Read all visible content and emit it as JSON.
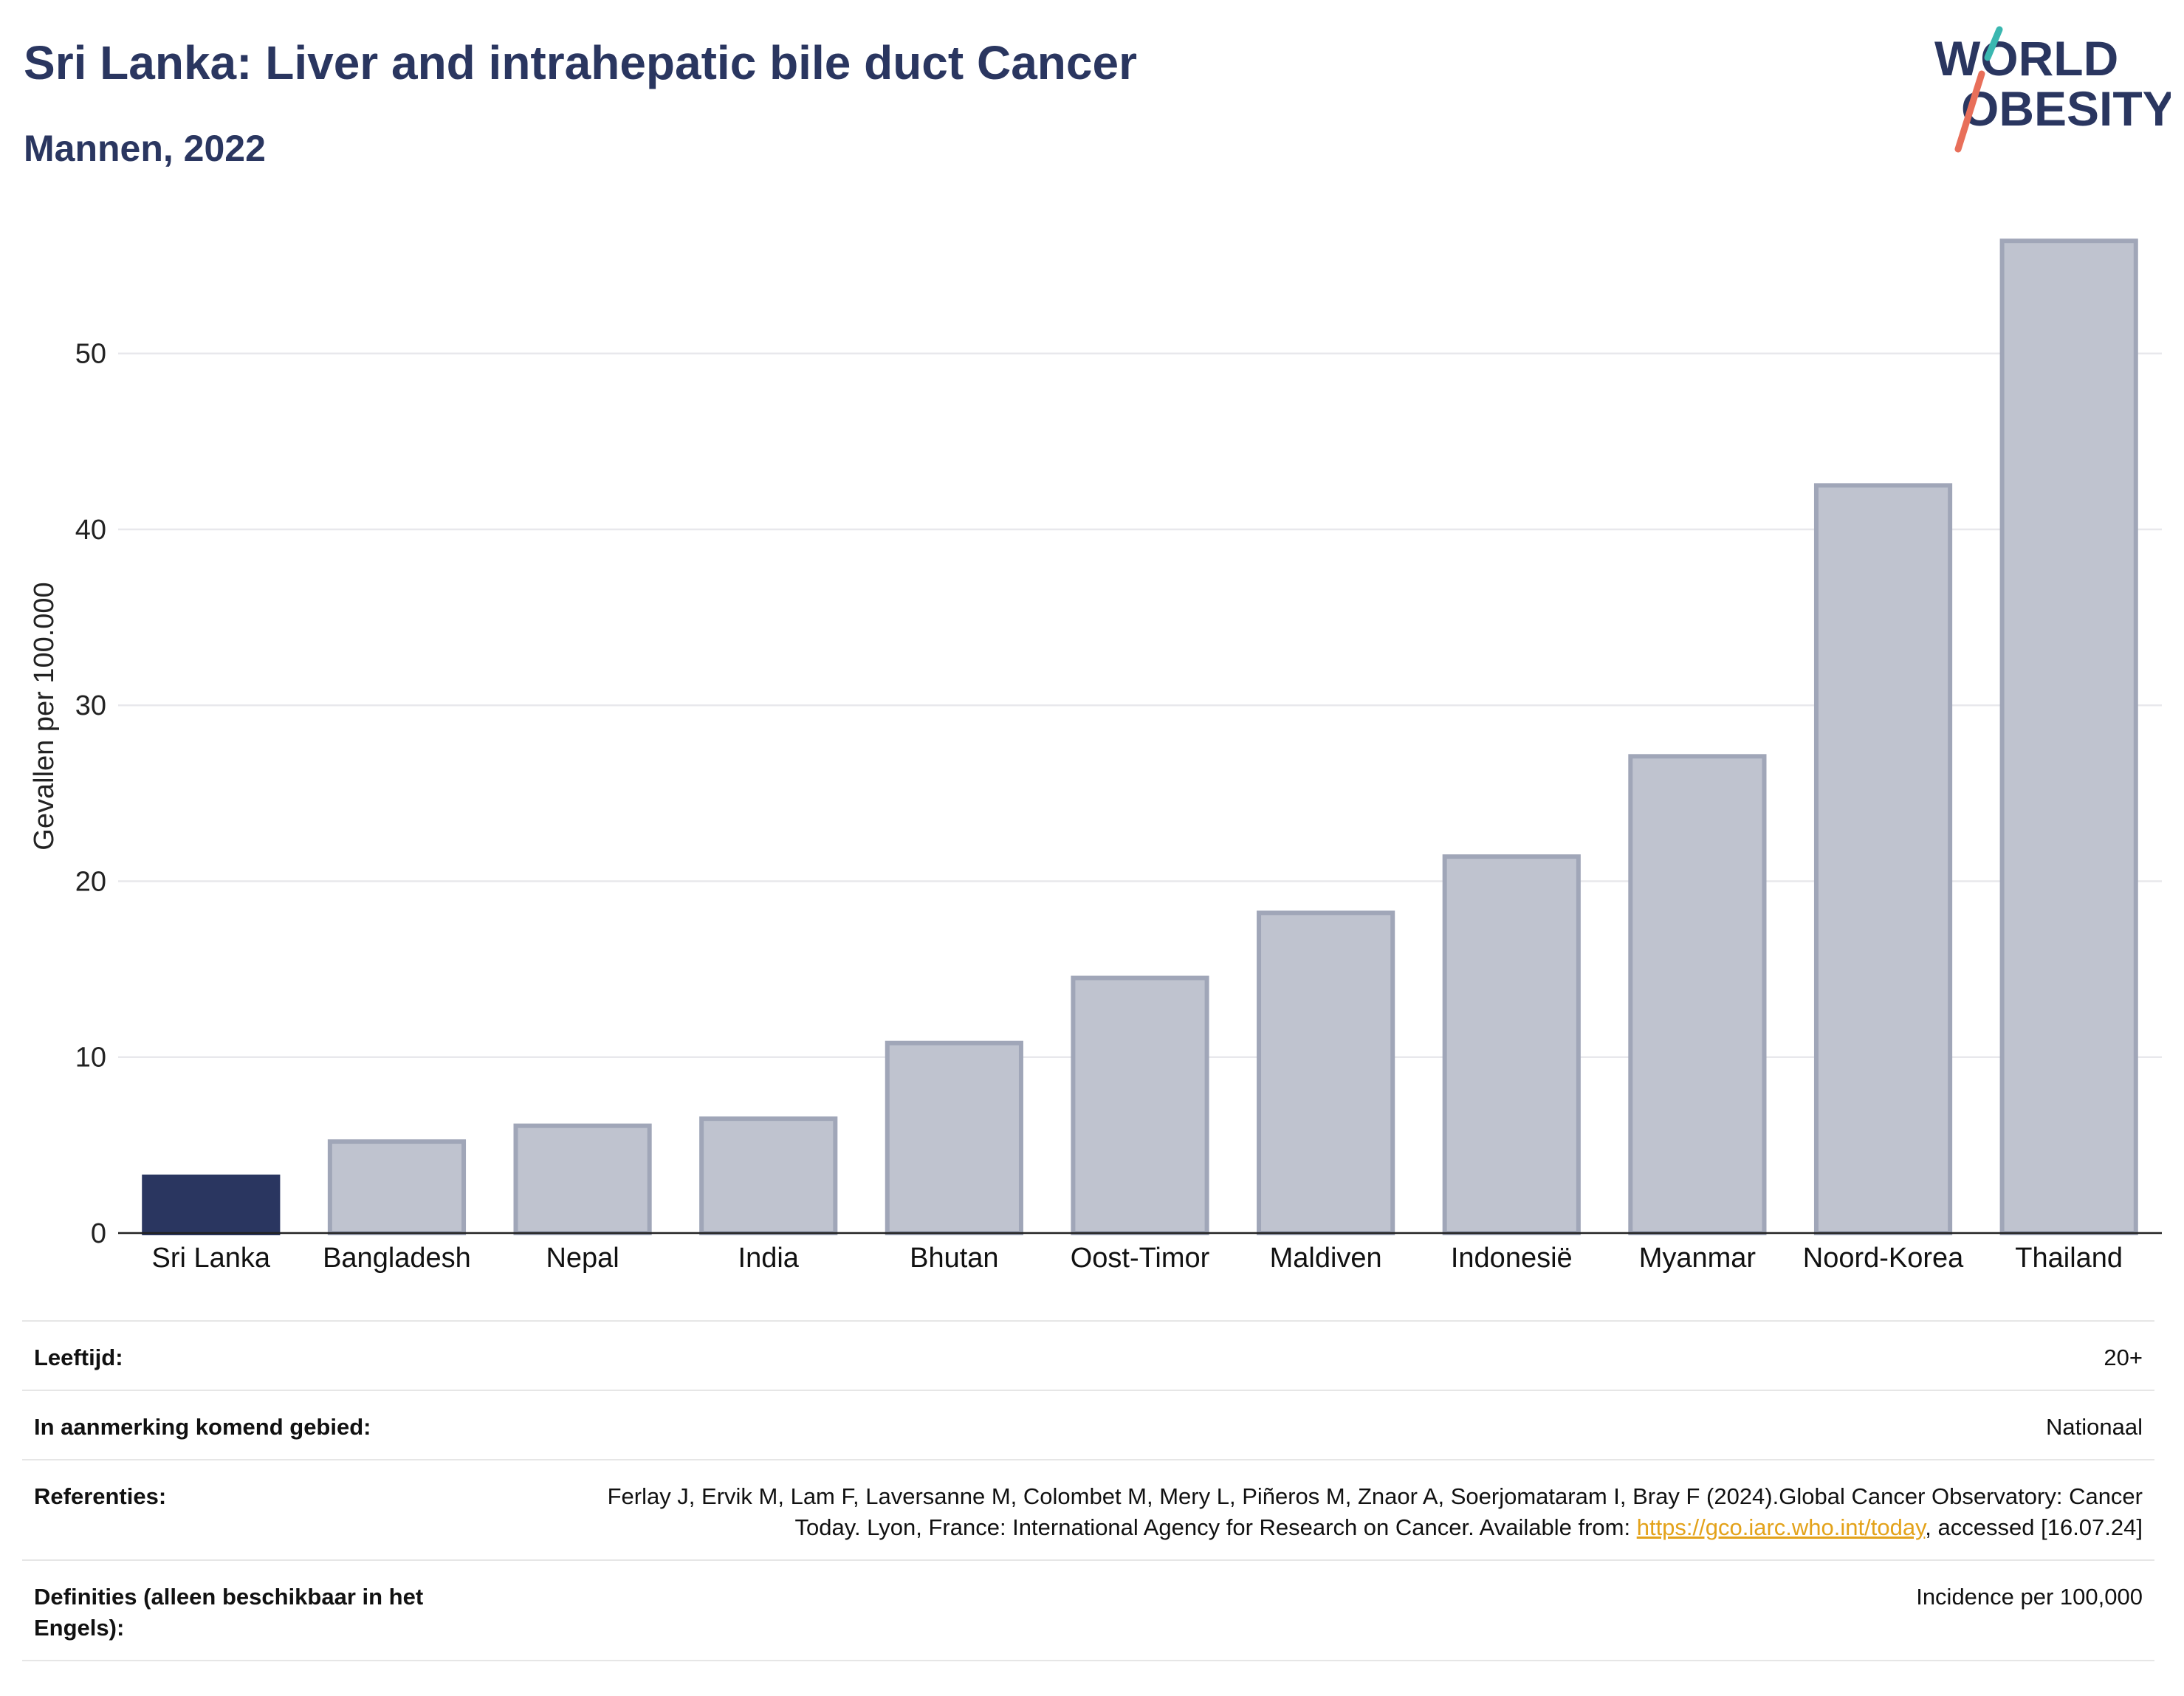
{
  "header": {
    "title": "Sri Lanka: Liver and intrahepatic bile duct Cancer",
    "subtitle": "Mannen, 2022"
  },
  "logo": {
    "line1": "WORLD",
    "line2": "OBESITY",
    "colors": {
      "text": "#2a3660",
      "slash_top": "#3ab7b0",
      "slash_bottom": "#e86f5a"
    }
  },
  "chart_data": {
    "type": "bar",
    "ylabel": "Gevallen per 100.000",
    "ylim": [
      0,
      57.5
    ],
    "yticks": [
      0,
      10,
      20,
      30,
      40,
      50
    ],
    "grid": true,
    "categories": [
      "Sri Lanka",
      "Bangladesh",
      "Nepal",
      "India",
      "Bhutan",
      "Oost-Timor",
      "Maldiven",
      "Indonesië",
      "Myanmar",
      "Noord-Korea",
      "Thailand"
    ],
    "values": [
      3.2,
      5.2,
      6.1,
      6.5,
      10.8,
      14.5,
      18.2,
      21.4,
      27.1,
      42.5,
      56.4
    ],
    "highlight": "Sri Lanka",
    "colors": {
      "highlight": "#2a3660",
      "bar_fill": "#bfc3cf",
      "bar_stroke": "#a0a6b8"
    }
  },
  "meta": {
    "rows": [
      {
        "label": "Leeftijd:",
        "value": "20+"
      },
      {
        "label": "In aanmerking komend gebied:",
        "value": "Nationaal"
      },
      {
        "label": "Referenties:",
        "value_pre": "Ferlay J, Ervik M, Lam F, Laversanne M, Colombet M, Mery L, Piñeros M, Znaor A, Soerjomataram I, Bray F (2024).Global Cancer Observatory: Cancer Today. Lyon, France: International Agency for Research on Cancer. Available from: ",
        "link": "https://gco.iarc.who.int/today",
        "value_post": ", accessed [16.07.24]"
      },
      {
        "label": "Definities (alleen beschikbaar in het Engels):",
        "value": "Incidence per 100,000"
      }
    ]
  }
}
